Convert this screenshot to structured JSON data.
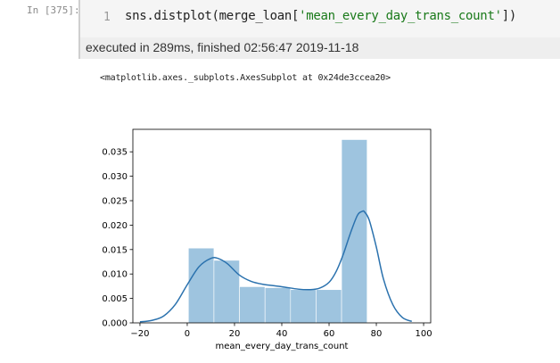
{
  "cell": {
    "prompt": "In  [375]:",
    "line_number": "1",
    "code_prefix": "sns.distplot(merge_loan[",
    "code_string": "'mean_every_day_trans_count'",
    "code_suffix": "])",
    "exec_status": "executed in 289ms, finished 02:56:47 2019-11-18",
    "output_repr": "<matplotlib.axes._subplots.AxesSubplot at 0x24de3ccea20>"
  },
  "colors": {
    "bar_fill": "#9ec4df",
    "kde_line": "#2b72ae",
    "string_literal": "#1a7a1a"
  },
  "chart_data": {
    "type": "bar",
    "xlabel": "mean_every_day_trans_count",
    "xlim": [
      -23,
      103
    ],
    "ylim": [
      0,
      0.0396
    ],
    "xticks": [
      -20,
      0,
      20,
      40,
      60,
      80,
      100
    ],
    "yticks": [
      0.0,
      0.005,
      0.01,
      0.015,
      0.02,
      0.025,
      0.03,
      0.035
    ],
    "ytick_labels": [
      "0.000",
      "0.005",
      "0.010",
      "0.015",
      "0.020",
      "0.025",
      "0.030",
      "0.035"
    ],
    "bins": [
      {
        "x0": 0.5,
        "x1": 11.3,
        "density": 0.0153
      },
      {
        "x0": 11.3,
        "x1": 22.1,
        "density": 0.0128
      },
      {
        "x0": 22.1,
        "x1": 32.9,
        "density": 0.0074
      },
      {
        "x0": 32.9,
        "x1": 43.7,
        "density": 0.0072
      },
      {
        "x0": 43.7,
        "x1": 54.5,
        "density": 0.0068
      },
      {
        "x0": 54.5,
        "x1": 65.3,
        "density": 0.0068
      },
      {
        "x0": 65.3,
        "x1": 76.1,
        "density": 0.0375
      }
    ],
    "kde": {
      "x": [
        -20,
        -15,
        -10,
        -5,
        0,
        5,
        10,
        13,
        17,
        22,
        27,
        32,
        40,
        47,
        52,
        56,
        60,
        63,
        66,
        69,
        72,
        74,
        75,
        77,
        80,
        83,
        87,
        91,
        95
      ],
      "y": [
        0.0002,
        0.0005,
        0.0014,
        0.0038,
        0.0078,
        0.0115,
        0.0132,
        0.0132,
        0.0121,
        0.0098,
        0.0085,
        0.0079,
        0.0074,
        0.0069,
        0.0068,
        0.0071,
        0.0083,
        0.0105,
        0.014,
        0.0183,
        0.022,
        0.0228,
        0.0227,
        0.021,
        0.0155,
        0.009,
        0.0037,
        0.0011,
        0.0003
      ]
    },
    "grid": false,
    "legend": "none"
  }
}
